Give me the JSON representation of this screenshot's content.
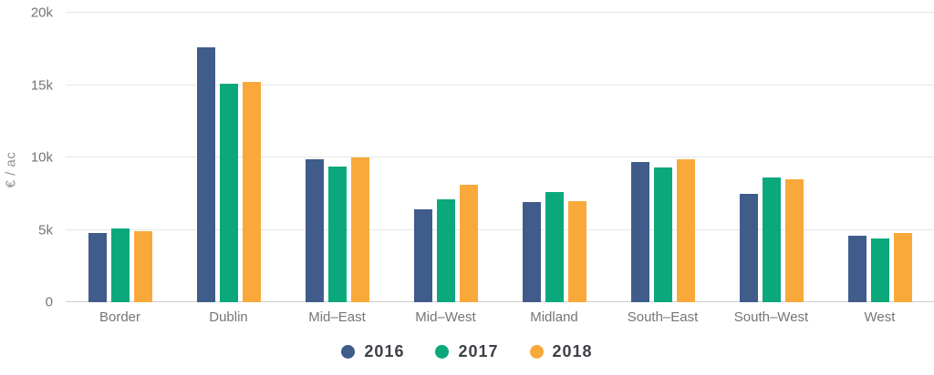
{
  "chart_data": {
    "type": "bar",
    "title": "",
    "ylabel": "€ / ac",
    "xlabel": "",
    "categories": [
      "Border",
      "Dublin",
      "Mid–East",
      "Mid–West",
      "Midland",
      "South–East",
      "South–West",
      "West"
    ],
    "series": [
      {
        "name": "2016",
        "color": "#3f5c8a",
        "values": [
          4800,
          17600,
          9900,
          6400,
          6900,
          9700,
          7500,
          4600
        ]
      },
      {
        "name": "2017",
        "color": "#0ba87c",
        "values": [
          5100,
          15100,
          9400,
          7100,
          7600,
          9300,
          8600,
          4400
        ]
      },
      {
        "name": "2018",
        "color": "#f8a93a",
        "values": [
          4900,
          15200,
          10000,
          8100,
          7000,
          9900,
          8500,
          4800
        ]
      }
    ],
    "ylim": [
      0,
      20000
    ],
    "yticks": [
      {
        "value": 0,
        "label": "0"
      },
      {
        "value": 5000,
        "label": "5k"
      },
      {
        "value": 10000,
        "label": "10k"
      },
      {
        "value": 15000,
        "label": "15k"
      },
      {
        "value": 20000,
        "label": "20k"
      }
    ],
    "grid": "horizontal",
    "legend_position": "bottom"
  },
  "colors": {
    "gridline": "#e7e7e7",
    "axis_line": "#cfcfcf",
    "tick_label": "#757575",
    "axis_title": "#8e8e8e",
    "legend_text": "#3f3f46",
    "background": "#ffffff"
  }
}
